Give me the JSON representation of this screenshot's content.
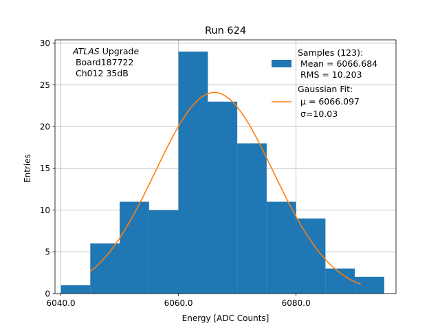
{
  "chart_data": {
    "type": "bar",
    "title": "Run 624",
    "xlabel": "Energy [ADC Counts]",
    "ylabel": "Entries",
    "xlim": [
      6039,
      6097
    ],
    "ylim": [
      0,
      30.4
    ],
    "grid": true,
    "x_ticks": [
      {
        "value": 6040,
        "label": "6040.0"
      },
      {
        "value": 6060,
        "label": "6060.0"
      },
      {
        "value": 6080,
        "label": "6080.0"
      }
    ],
    "y_ticks": [
      {
        "value": 0,
        "label": "0"
      },
      {
        "value": 5,
        "label": "5"
      },
      {
        "value": 10,
        "label": "10"
      },
      {
        "value": 15,
        "label": "15"
      },
      {
        "value": 20,
        "label": "20"
      },
      {
        "value": 25,
        "label": "25"
      },
      {
        "value": 30,
        "label": "30"
      }
    ],
    "histogram": {
      "name": "Samples (123):",
      "color": "#1f77b4",
      "bin_edges": [
        6040,
        6045,
        6050,
        6055,
        6060,
        6065,
        6070,
        6075,
        6080,
        6085,
        6090,
        6095
      ],
      "counts": [
        1,
        6,
        11,
        10,
        29,
        23,
        18,
        11,
        9,
        3,
        2
      ]
    },
    "gaussian_fit": {
      "name": "Gaussian Fit:",
      "color": "#ff7f0e",
      "mu": 6066.097,
      "sigma": 10.03,
      "amplitude": 24.1,
      "x_range": [
        6045,
        6091
      ]
    },
    "legend": {
      "position": "top-right",
      "samples_lines": [
        "Samples (123):",
        " Mean = 6066.684",
        " RMS = 10.203"
      ],
      "fit_lines": [
        "Gaussian Fit:",
        " μ = 6066.097",
        " σ=10.03"
      ]
    },
    "annotation": {
      "position": "top-left",
      "italic_word": "ATLAS",
      "first_line_rest": " Upgrade",
      "lines": [
        " Board187722",
        " Ch012 35dB"
      ]
    }
  }
}
